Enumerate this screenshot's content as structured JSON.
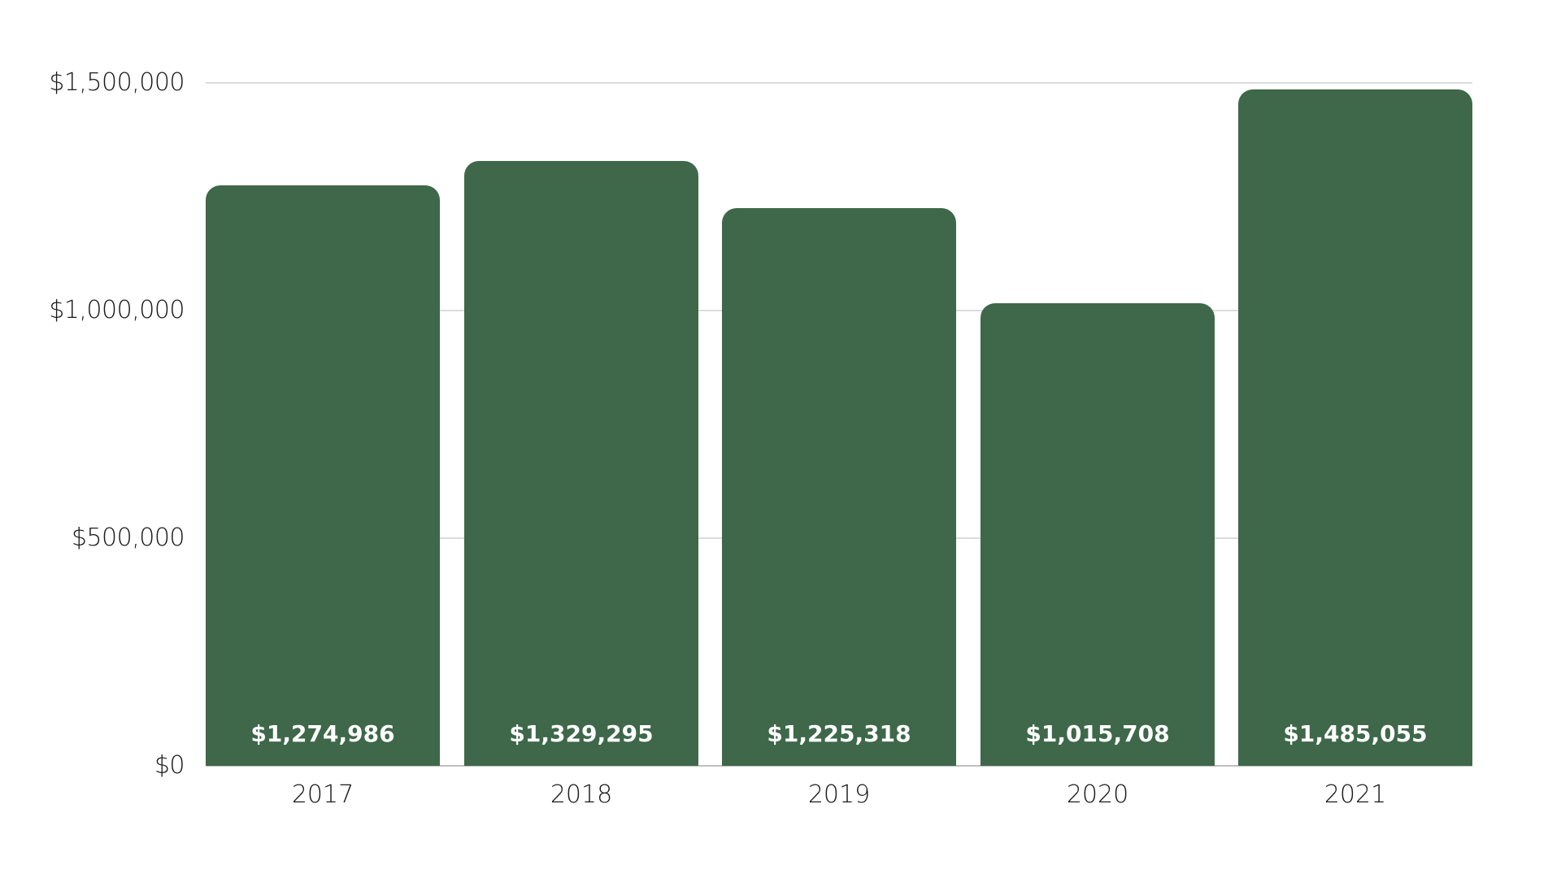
{
  "chart_data": {
    "type": "bar",
    "title": "",
    "xlabel": "",
    "ylabel": "",
    "categories": [
      "2017",
      "2018",
      "2019",
      "2020",
      "2021"
    ],
    "values": [
      1274986,
      1329295,
      1225318,
      1015708,
      1485055
    ],
    "value_labels": [
      "$1,274,986",
      "$1,329,295",
      "$1,225,318",
      "$1,015,708",
      "$1,485,055"
    ],
    "ylim": [
      0,
      1500000
    ],
    "yticks": [
      0,
      500000,
      1000000,
      1500000
    ],
    "ytick_labels": [
      "$0",
      "$500,000",
      "$1,000,000",
      "$1,500,000"
    ],
    "grid": true,
    "legend": null,
    "bar_color": "#3e6849"
  }
}
